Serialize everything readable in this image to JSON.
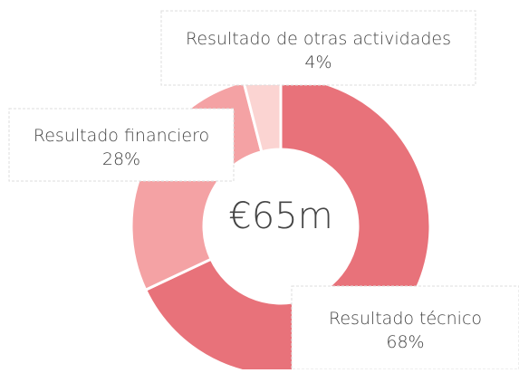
{
  "chart_data": {
    "type": "donut",
    "categories": [
      "Resultado técnico",
      "Resultado financiero",
      "Resultado de otras actividades"
    ],
    "values": [
      68,
      28,
      4
    ],
    "value_labels": [
      "68%",
      "28%",
      "4%"
    ],
    "colors": [
      "#e8727a",
      "#f4a2a4",
      "#fbd4d2"
    ],
    "center_label": "€65m"
  }
}
